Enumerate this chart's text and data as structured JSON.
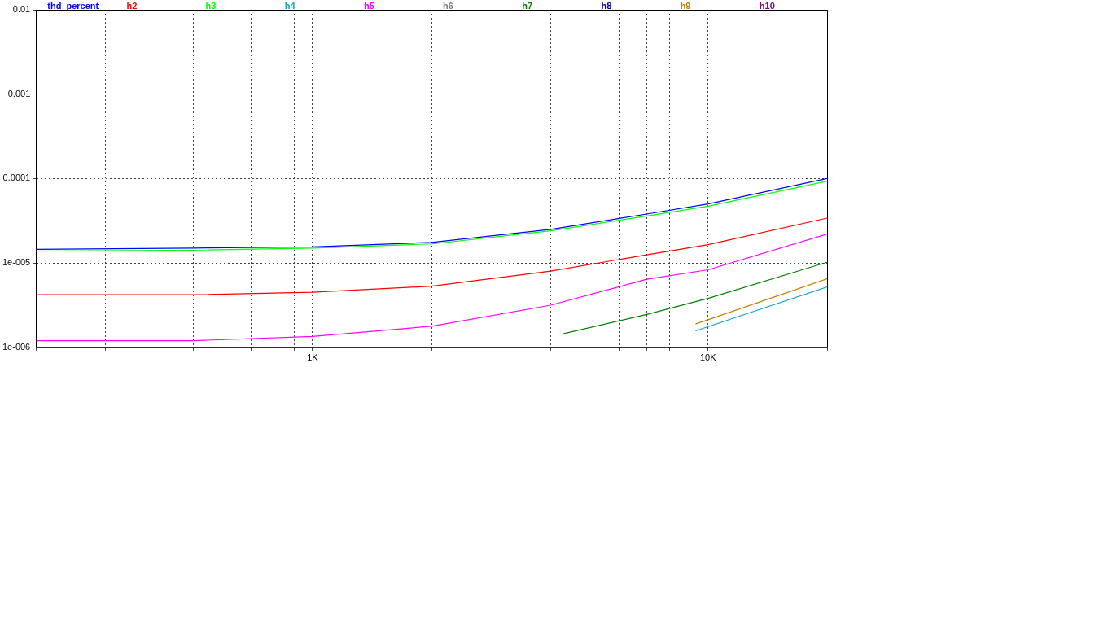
{
  "chart_data": {
    "type": "line",
    "log": "xy",
    "grid": true,
    "legend": "top",
    "xlim": [
      200,
      20000
    ],
    "ylim": [
      1e-06,
      0.01
    ],
    "xticks": [
      {
        "value": 200,
        "label": null
      },
      {
        "value": 300,
        "label": null
      },
      {
        "value": 400,
        "label": null
      },
      {
        "value": 500,
        "label": null
      },
      {
        "value": 600,
        "label": null
      },
      {
        "value": 700,
        "label": null
      },
      {
        "value": 800,
        "label": null
      },
      {
        "value": 900,
        "label": null
      },
      {
        "value": 1000,
        "label": "1K"
      },
      {
        "value": 2000,
        "label": null
      },
      {
        "value": 3000,
        "label": null
      },
      {
        "value": 4000,
        "label": null
      },
      {
        "value": 5000,
        "label": null
      },
      {
        "value": 6000,
        "label": null
      },
      {
        "value": 7000,
        "label": null
      },
      {
        "value": 8000,
        "label": null
      },
      {
        "value": 9000,
        "label": null
      },
      {
        "value": 10000,
        "label": "10K"
      },
      {
        "value": 20000,
        "label": null
      }
    ],
    "yticks": [
      {
        "value": 1e-06,
        "label": "1e-006"
      },
      {
        "value": 1e-05,
        "label": "1e-005"
      },
      0.0001,
      0.001,
      0.01
    ],
    "series": [
      {
        "name": "thd_percent",
        "color": "#0000ff",
        "x": [
          200,
          500,
          1000,
          2000,
          4000,
          7000,
          10000,
          20000
        ],
        "values": [
          1.45e-05,
          1.5e-05,
          1.55e-05,
          1.75e-05,
          2.5e-05,
          3.8e-05,
          5e-05,
          0.0001
        ]
      },
      {
        "name": "h2",
        "color": "#ff0000",
        "x": [
          200,
          500,
          1000,
          2000,
          4000,
          7000,
          10000,
          20000
        ],
        "values": [
          4.2e-06,
          4.2e-06,
          4.5e-06,
          5.3e-06,
          8e-06,
          1.25e-05,
          1.65e-05,
          3.4e-05
        ]
      },
      {
        "name": "h3",
        "color": "#00ff00",
        "x": [
          200,
          500,
          1000,
          2000,
          4000,
          7000,
          10000,
          20000
        ],
        "values": [
          1.38e-05,
          1.42e-05,
          1.5e-05,
          1.68e-05,
          2.4e-05,
          3.6e-05,
          4.7e-05,
          9.3e-05
        ]
      },
      {
        "name": "h4",
        "color": "#10a8c8",
        "x": [
          9300,
          20000
        ],
        "values": [
          1.57e-06,
          5.2e-06
        ]
      },
      {
        "name": "h5",
        "color": "#ff00ff",
        "x": [
          200,
          500,
          1000,
          2000,
          4000,
          7000,
          10000,
          20000
        ],
        "values": [
          1.2e-06,
          1.2e-06,
          1.35e-06,
          1.78e-06,
          3.16e-06,
          6.4e-06,
          8.3e-06,
          2.2e-05
        ]
      },
      {
        "name": "h6",
        "color": "#808080"
      },
      {
        "name": "h7",
        "color": "#008000",
        "x": [
          4300,
          7000,
          10000,
          20000
        ],
        "values": [
          1.45e-06,
          2.45e-06,
          3.8e-06,
          1.02e-05
        ]
      },
      {
        "name": "h8",
        "color": "#0000a0"
      },
      {
        "name": "h9",
        "color": "#c08000",
        "x": [
          9300,
          20000
        ],
        "values": [
          1.89e-06,
          6.5e-06
        ]
      },
      {
        "name": "h10",
        "color": "#800080"
      }
    ]
  }
}
